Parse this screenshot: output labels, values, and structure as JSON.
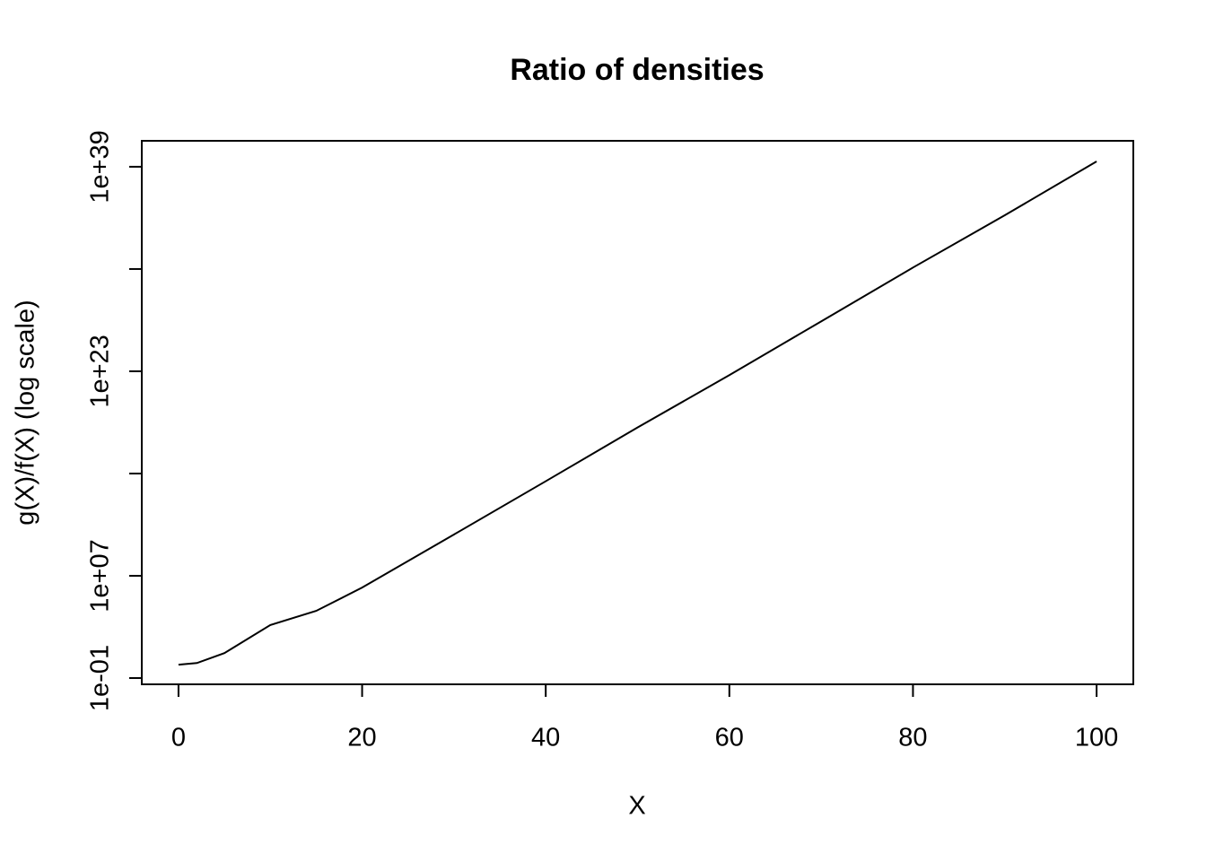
{
  "chart_data": {
    "type": "line",
    "title": "Ratio of densities",
    "x_label": "X",
    "y_label": "g(X)/f(X) (log scale)",
    "y_log": true,
    "color": "#000000",
    "x": [
      0,
      2,
      5,
      10,
      15,
      20,
      30,
      40,
      50,
      60,
      70,
      80,
      90,
      100
    ],
    "values": [
      1.1,
      1.5,
      9,
      1400,
      18000,
      1200000,
      17000000000.0,
      250000000000000.0,
      4e+18,
      5e+22,
      8e+26,
      1.3e+31,
      1.6e+35,
      2.6e+39
    ],
    "xlim": [
      -4,
      104
    ],
    "xticks": [
      0,
      20,
      40,
      60,
      80,
      100
    ],
    "ylim": [
      0.0324,
      1.07e+41
    ],
    "yticks": [
      {
        "value": 0.1,
        "label": "1e-01"
      },
      {
        "value": 10000000.0,
        "label": "1e+07"
      },
      {
        "value": 1000000000000000.0,
        "label": null
      },
      {
        "value": 1e+23,
        "label": "1e+23"
      },
      {
        "value": 1e+31,
        "label": null
      },
      {
        "value": 1e+39,
        "label": "1e+39"
      }
    ]
  }
}
